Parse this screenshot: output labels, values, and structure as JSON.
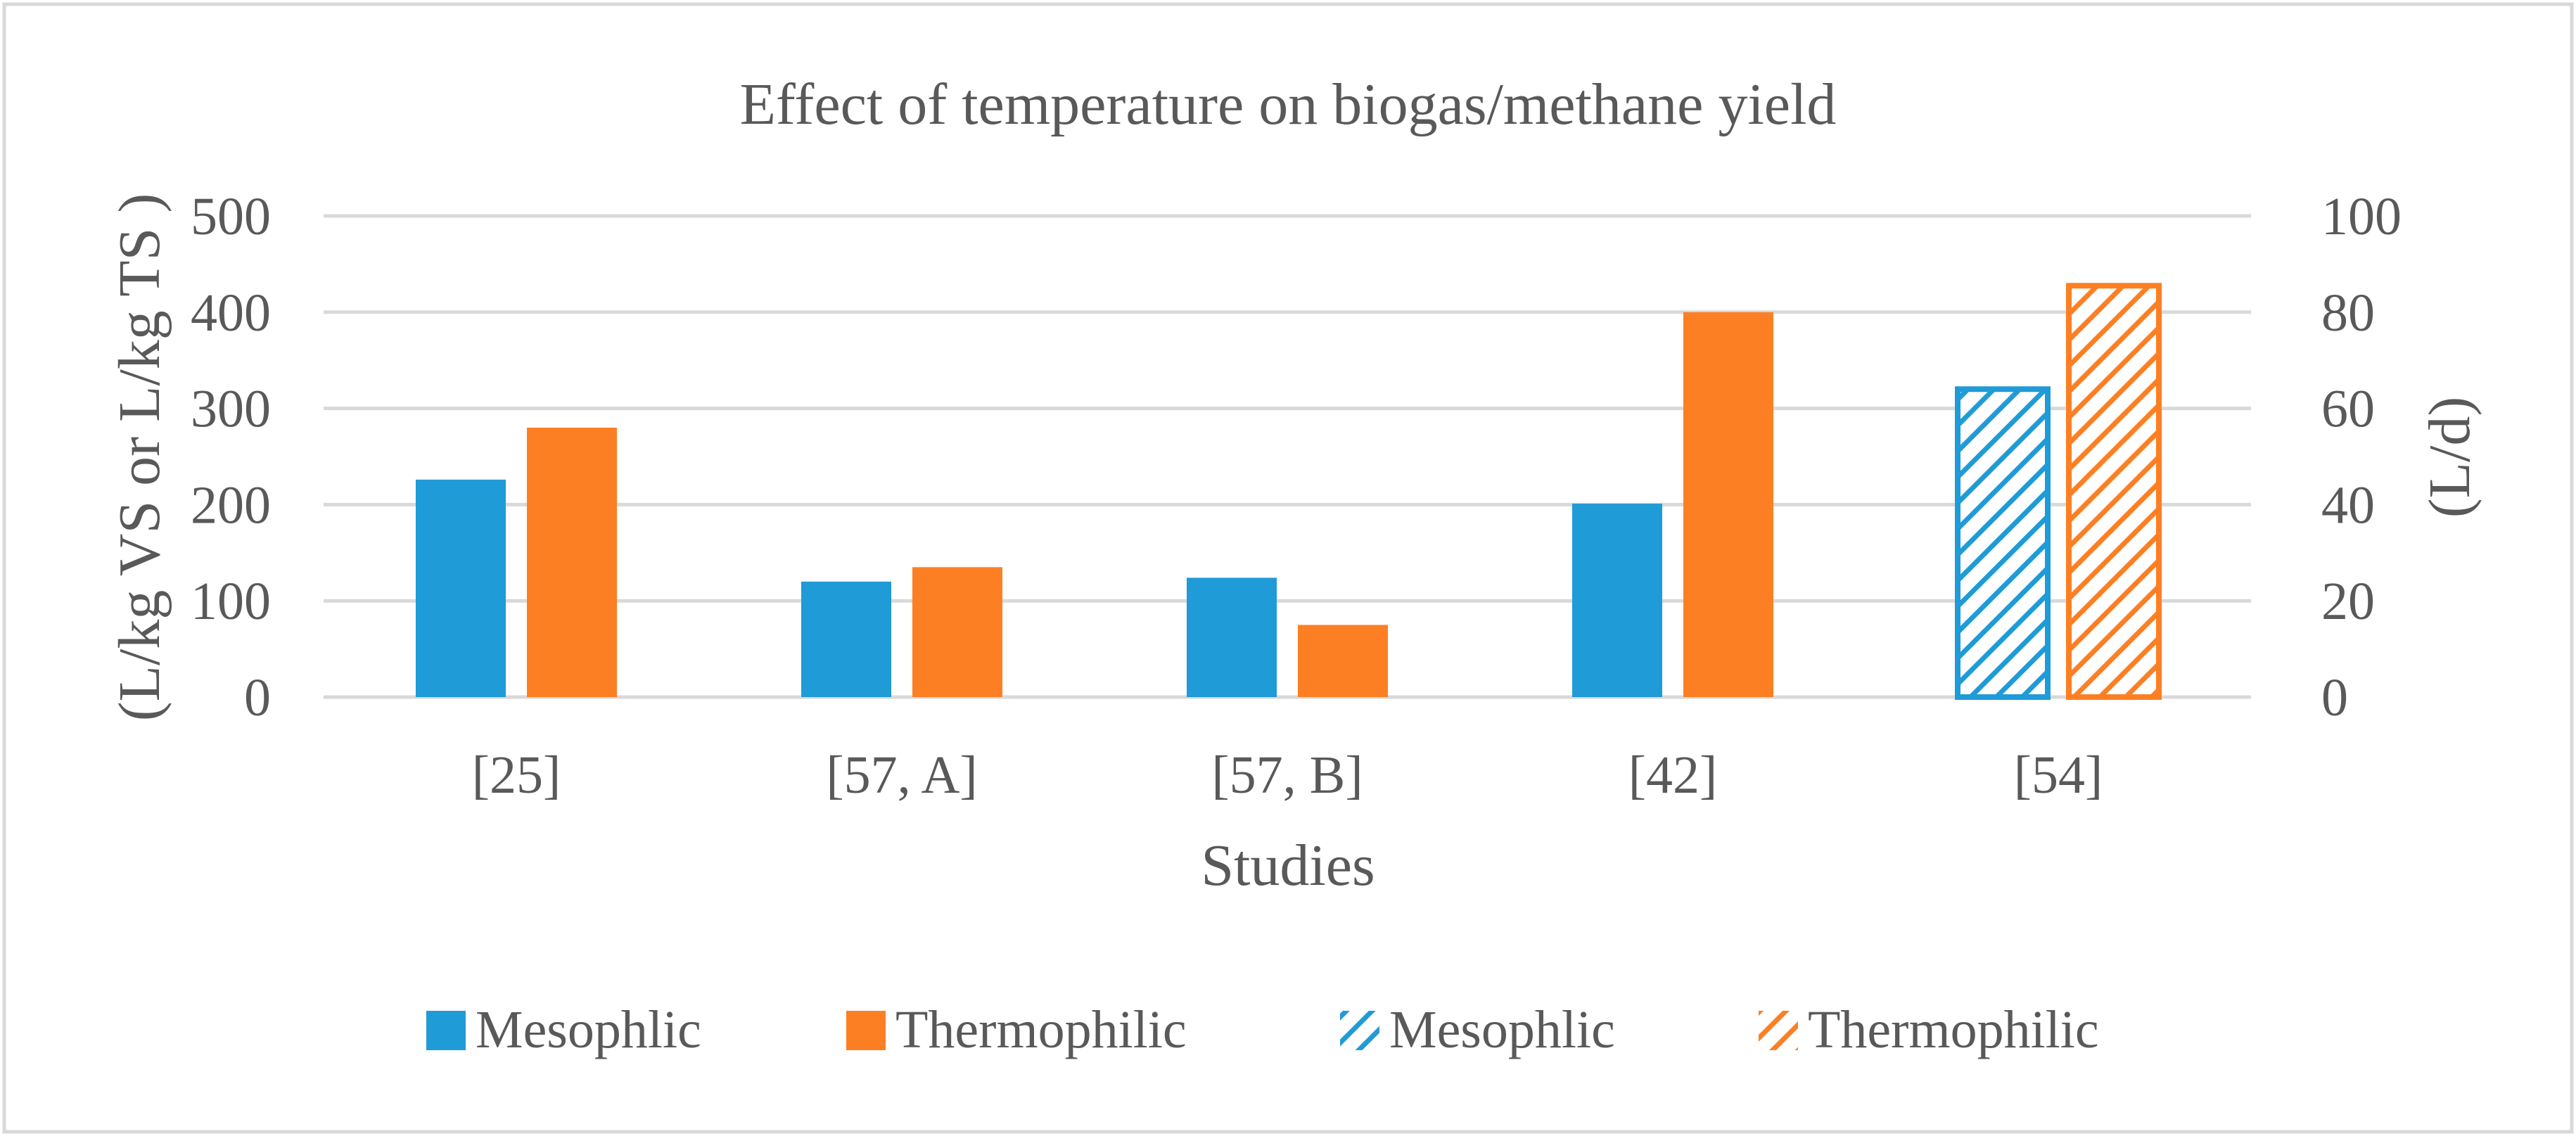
{
  "chart_data": {
    "type": "bar",
    "title": "Effect of temperature on biogas/methane yield",
    "xlabel": "Studies",
    "ylabel": "(L/kg VS or L/kg TS )",
    "y2label": "(L/d)",
    "categories": [
      "[25]",
      "[57, A]",
      "[57, B]",
      "[42]",
      "[54]"
    ],
    "ylim": [
      0,
      500
    ],
    "y2lim": [
      0,
      100
    ],
    "yticks": [
      "0",
      "100",
      "200",
      "300",
      "400",
      "500"
    ],
    "y2ticks": [
      "0",
      "20",
      "40",
      "60",
      "80",
      "100"
    ],
    "grid": true,
    "legend_position": "bottom",
    "series": [
      {
        "name": "Mesophlic",
        "axis": "left",
        "pattern": "solid",
        "color": "#1f9bd7",
        "values": [
          226,
          120,
          124,
          201,
          null
        ]
      },
      {
        "name": "Thermophilic",
        "axis": "left",
        "pattern": "solid",
        "color": "#fd7f23",
        "values": [
          280,
          135,
          75,
          400,
          null
        ]
      },
      {
        "name": "Mesophlic",
        "axis": "right",
        "pattern": "hatched",
        "color": "#1f9bd7",
        "values": [
          null,
          null,
          null,
          null,
          64
        ]
      },
      {
        "name": "Thermophilic",
        "axis": "right",
        "pattern": "hatched",
        "color": "#fd7f23",
        "values": [
          null,
          null,
          null,
          null,
          85.5
        ]
      }
    ]
  }
}
